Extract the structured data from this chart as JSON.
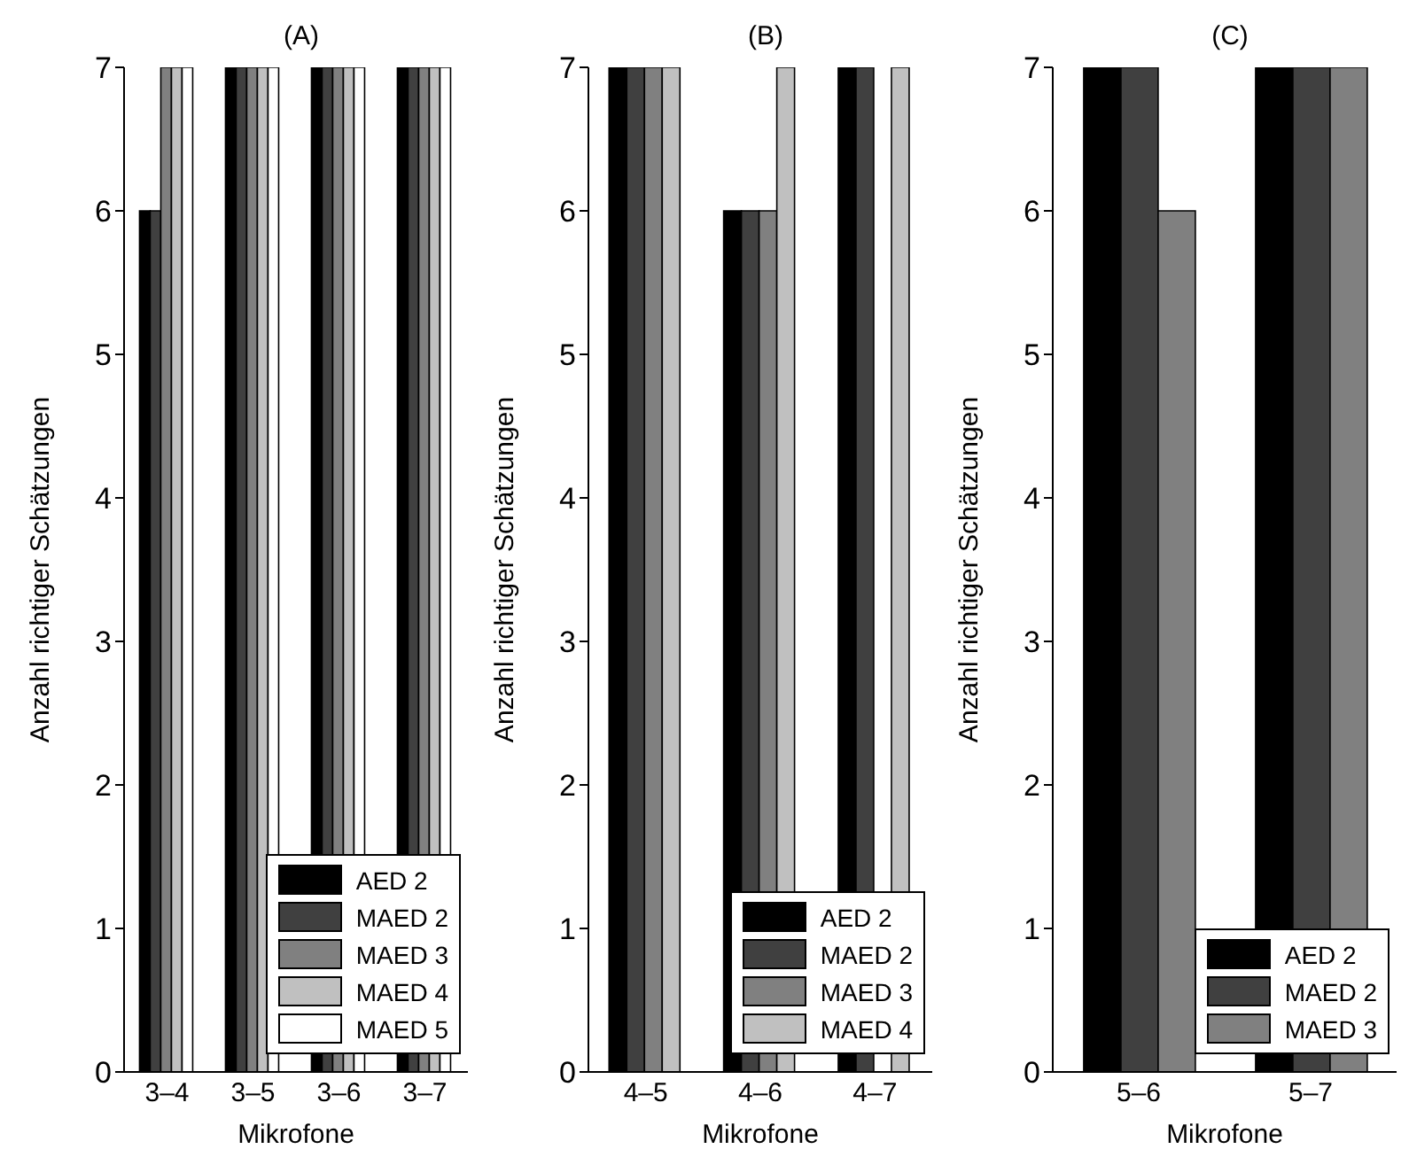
{
  "chart_data": [
    {
      "type": "bar",
      "title": "(A)",
      "xlabel": "Mikrofone",
      "ylabel": "Anzahl richtiger Schätzungen",
      "categories": [
        "3–4",
        "3–5",
        "3–6",
        "3–7"
      ],
      "ylim": [
        0,
        7
      ],
      "yticks": [
        0,
        1,
        2,
        3,
        4,
        5,
        6,
        7
      ],
      "legend": "bottom right",
      "series": [
        {
          "name": "AED 2",
          "color": "#000000",
          "values": [
            6,
            7,
            7,
            7
          ]
        },
        {
          "name": "MAED 2",
          "color": "#404040",
          "values": [
            6,
            7,
            7,
            7
          ]
        },
        {
          "name": "MAED 3",
          "color": "#808080",
          "values": [
            7,
            7,
            7,
            7
          ]
        },
        {
          "name": "MAED 4",
          "color": "#c0c0c0",
          "values": [
            7,
            7,
            7,
            7
          ]
        },
        {
          "name": "MAED 5",
          "color": "#ffffff",
          "values": [
            7,
            7,
            7,
            7
          ]
        }
      ]
    },
    {
      "type": "bar",
      "title": "(B)",
      "xlabel": "Mikrofone",
      "ylabel": "Anzahl richtiger Schätzungen",
      "categories": [
        "4–5",
        "4–6",
        "4–7"
      ],
      "ylim": [
        0,
        7
      ],
      "yticks": [
        0,
        1,
        2,
        3,
        4,
        5,
        6,
        7
      ],
      "legend": "bottom right",
      "series": [
        {
          "name": "AED 2",
          "color": "#000000",
          "values": [
            7,
            6,
            7
          ]
        },
        {
          "name": "MAED 2",
          "color": "#404040",
          "values": [
            7,
            6,
            7
          ]
        },
        {
          "name": "MAED 3",
          "color": "#808080",
          "values": [
            7,
            6,
            0
          ]
        },
        {
          "name": "MAED 4",
          "color": "#c0c0c0",
          "values": [
            7,
            7,
            7
          ]
        }
      ]
    },
    {
      "type": "bar",
      "title": "(C)",
      "xlabel": "Mikrofone",
      "ylabel": "Anzahl richtiger Schätzungen",
      "categories": [
        "5–6",
        "5–7"
      ],
      "ylim": [
        0,
        7
      ],
      "yticks": [
        0,
        1,
        2,
        3,
        4,
        5,
        6,
        7
      ],
      "legend": "bottom right",
      "series": [
        {
          "name": "AED 2",
          "color": "#000000",
          "values": [
            7,
            7
          ]
        },
        {
          "name": "MAED 2",
          "color": "#404040",
          "values": [
            7,
            7
          ]
        },
        {
          "name": "MAED 3",
          "color": "#808080",
          "values": [
            6,
            7
          ]
        }
      ]
    }
  ]
}
